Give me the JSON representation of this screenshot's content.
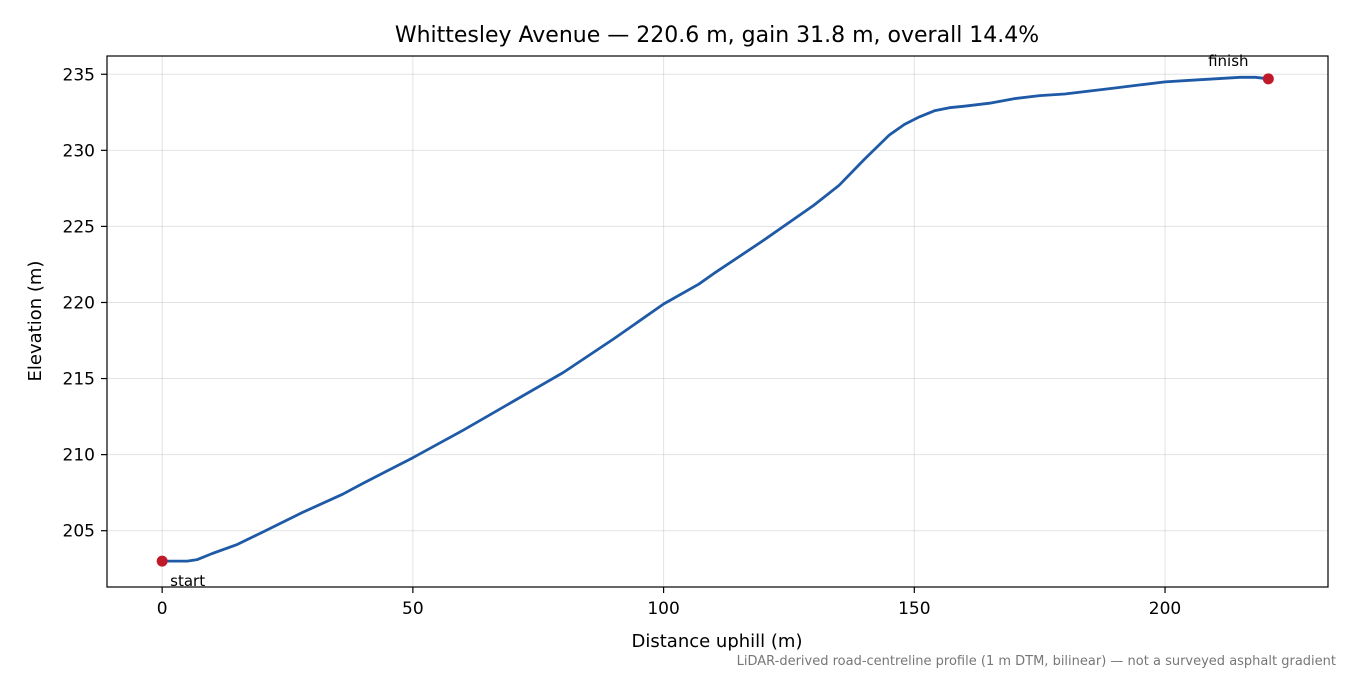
{
  "chart_data": {
    "type": "line",
    "title": "Whittesley Avenue — 220.6 m, gain 31.8 m, overall 14.4%",
    "xlabel": "Distance uphill (m)",
    "ylabel": "Elevation (m)",
    "xlim": [
      -11,
      232.5
    ],
    "ylim": [
      201.3,
      236.2
    ],
    "xticks": [
      0,
      50,
      100,
      150,
      200
    ],
    "yticks": [
      205,
      210,
      215,
      220,
      225,
      230,
      235
    ],
    "grid": true,
    "series": [
      {
        "color": "#1f5aa6",
        "x": [
          0,
          2,
          5,
          7,
          10,
          15,
          20,
          28,
          36,
          40,
          50,
          60,
          70,
          80,
          90,
          100,
          107,
          110,
          120,
          130,
          135,
          140,
          145,
          148,
          151,
          154,
          157,
          160,
          165,
          170,
          175,
          180,
          185,
          190,
          195,
          200,
          205,
          210,
          215,
          218,
          220.6
        ],
        "y": [
          203.0,
          203.0,
          203.0,
          203.1,
          203.5,
          204.1,
          204.9,
          206.2,
          207.4,
          208.1,
          209.8,
          211.6,
          213.5,
          215.4,
          217.6,
          219.9,
          221.2,
          221.9,
          224.1,
          226.4,
          227.7,
          229.4,
          231.0,
          231.7,
          232.2,
          232.6,
          232.8,
          232.9,
          233.1,
          233.4,
          233.6,
          233.7,
          233.9,
          234.1,
          234.3,
          234.5,
          234.6,
          234.7,
          234.8,
          234.8,
          234.7
        ]
      }
    ],
    "markers": {
      "color": "#c01a2a",
      "points": [
        {
          "label": "start",
          "x": 0,
          "y": 203.0
        },
        {
          "label": "finish",
          "x": 220.6,
          "y": 234.7
        }
      ]
    },
    "caption": "LiDAR-derived road-centreline profile (1 m DTM, bilinear) — not a surveyed asphalt gradient"
  }
}
